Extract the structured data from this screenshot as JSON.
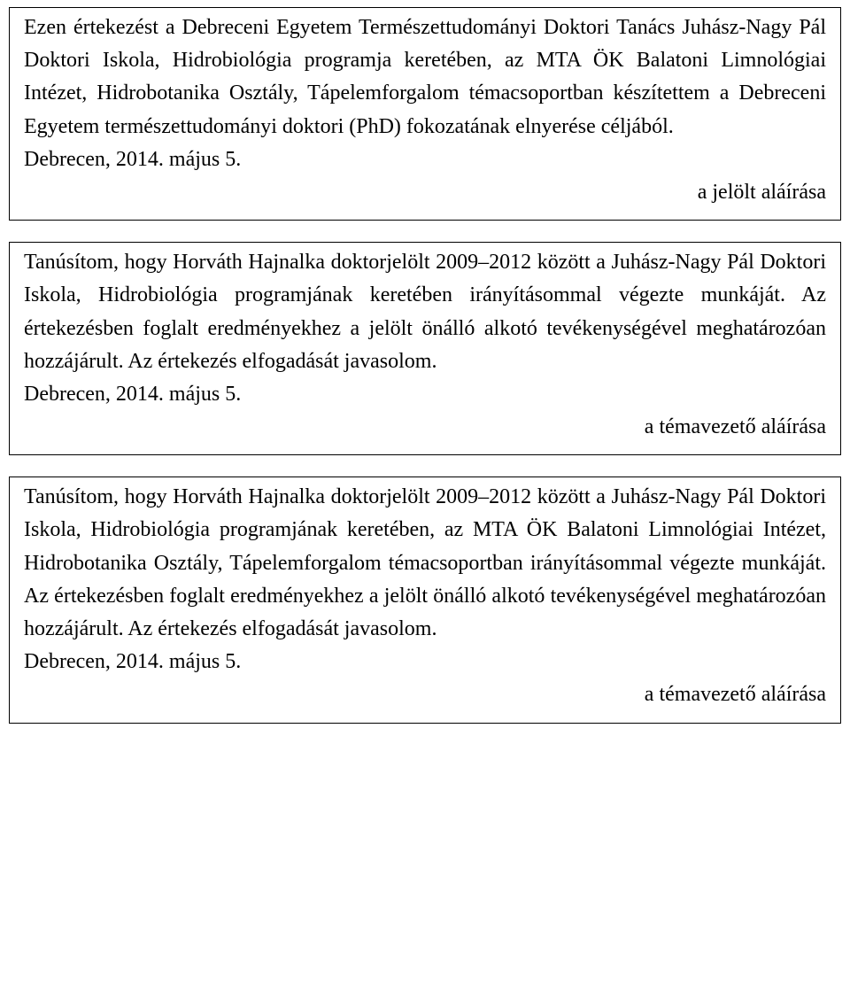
{
  "box1": {
    "paragraph": "Ezen értekezést a Debreceni Egyetem Természettudományi Doktori Tanács Juhász-Nagy Pál Doktori Iskola, Hidrobiológia programja keretében, az MTA ÖK Balatoni Limnológiai Intézet, Hidrobotanika Osztály, Tápelemforgalom témacsoportban készítettem a Debreceni Egyetem természettudományi doktori (PhD) fokozatának elnyerése céljából.",
    "date": "Debrecen, 2014. május 5.",
    "signature": "a jelölt aláírása"
  },
  "box2": {
    "paragraph": "Tanúsítom, hogy Horváth Hajnalka doktorjelölt 2009–2012 között a Juhász-Nagy Pál Doktori Iskola, Hidrobiológia programjának keretében irányításommal végezte munkáját. Az értekezésben foglalt eredményekhez a jelölt önálló alkotó tevékenységével meghatározóan hozzájárult. Az értekezés elfogadását javasolom.",
    "date": "Debrecen, 2014. május 5.",
    "signature": "a témavezető aláírása"
  },
  "box3": {
    "paragraph": "Tanúsítom, hogy Horváth Hajnalka doktorjelölt 2009–2012 között a Juhász-Nagy Pál Doktori Iskola, Hidrobiológia programjának keretében, az MTA ÖK Balatoni Limnológiai Intézet, Hidrobotanika Osztály, Tápelemforgalom témacsoportban irányításommal végezte munkáját. Az értekezésben foglalt eredményekhez a jelölt önálló alkotó tevékenységével meghatározóan hozzájárult. Az értekezés elfogadását javasolom.",
    "date": "Debrecen, 2014. május 5.",
    "signature": "a témavezető aláírása"
  }
}
